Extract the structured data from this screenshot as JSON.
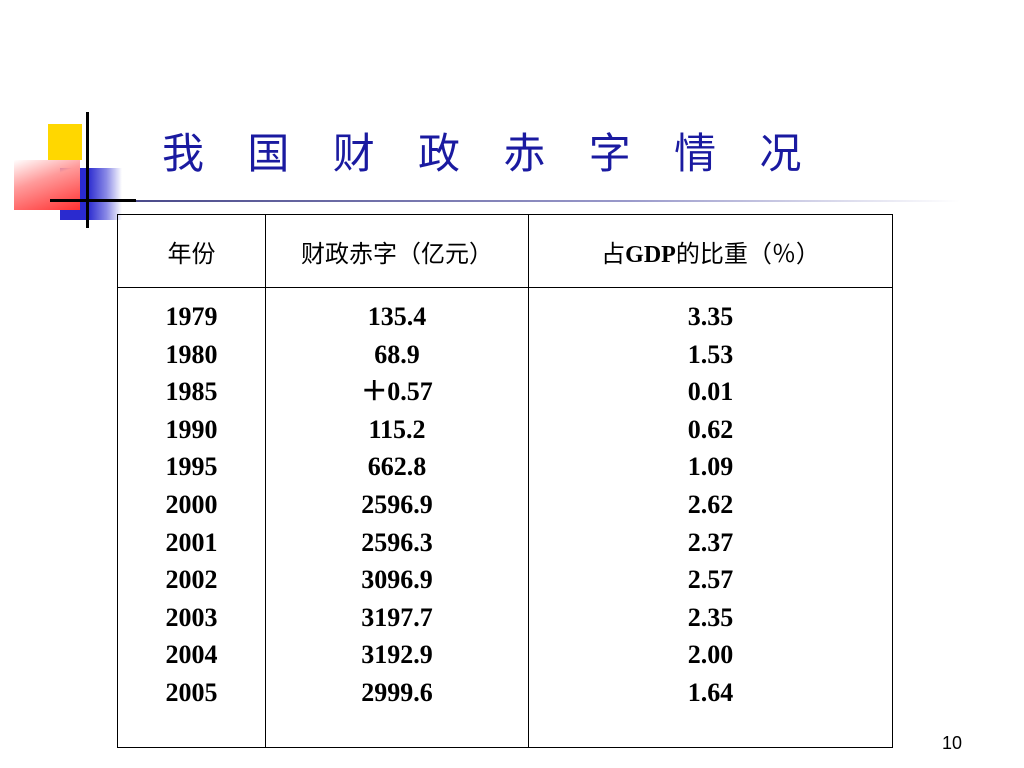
{
  "slide": {
    "title": "我 国 财 政 赤 字 情 况",
    "page_number": "10"
  },
  "table": {
    "headers": {
      "year": "年份",
      "deficit": "财政赤字（亿元）",
      "gdp_prefix": "占",
      "gdp_bold": "GDP",
      "gdp_suffix": "的比重（％）"
    },
    "years": [
      "1979",
      "1980",
      "1985",
      "1990",
      "1995",
      "2000",
      "2001",
      "2002",
      "2003",
      "2004",
      "2005"
    ],
    "deficits": [
      "135.4",
      "68.9",
      "＋0.57",
      "115.2",
      "662.8",
      "2596.9",
      "2596.3",
      "3096.9",
      "3197.7",
      "3192.9",
      "2999.6"
    ],
    "gdp_shares": [
      "3.35",
      "1.53",
      "0.01",
      "0.62",
      "1.09",
      "2.62",
      "2.37",
      "2.57",
      "2.35",
      "2.00",
      "1.64"
    ]
  }
}
